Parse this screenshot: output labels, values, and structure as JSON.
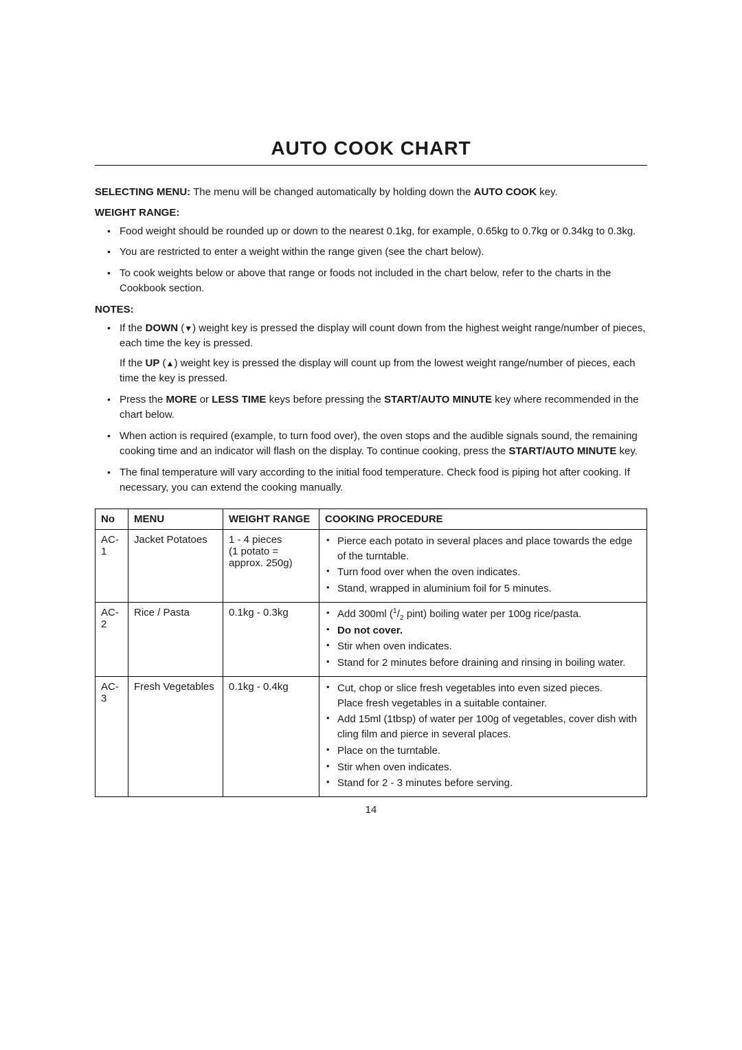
{
  "title": "AUTO COOK CHART",
  "intro": {
    "selecting_label": "SELECTING MENU:",
    "selecting_text": " The menu will be changed automatically by holding down the ",
    "selecting_key": "AUTO COOK",
    "selecting_tail": " key."
  },
  "weight": {
    "heading": "WEIGHT RANGE:",
    "items": [
      "Food weight should be rounded up or down to the nearest 0.1kg, for example, 0.65kg to 0.7kg or 0.34kg to 0.3kg.",
      "You are restricted to enter a weight within the range given (see the chart below).",
      "To cook weights below or above that range or foods not included in the chart below, refer to the charts in the Cookbook section."
    ]
  },
  "notes": {
    "heading": "NOTES:",
    "n1_a": "If the ",
    "n1_down": "DOWN",
    "n1_b": " (",
    "n1_tri_down": "▼",
    "n1_c": ") weight key is pressed the display will count down from the highest weight range/number of pieces, each time the key is pressed.",
    "n1_sub_a": "If the ",
    "n1_up": "UP",
    "n1_sub_b": " (",
    "n1_tri_up": "▲",
    "n1_sub_c": ") weight key is pressed the display will count up from the lowest weight range/number of pieces, each time the key is pressed.",
    "n2_a": "Press the ",
    "n2_more": "MORE",
    "n2_b": " or ",
    "n2_less": "LESS TIME",
    "n2_c": " keys before pressing the ",
    "n2_start": "START/AUTO MINUTE",
    "n2_d": " key where recommended in the chart below.",
    "n3_a": "When action is required (example, to turn food over), the oven stops and the audible signals sound, the remaining cooking time and an indicator will flash on the display. To continue cooking, press the ",
    "n3_start": "START/AUTO MINUTE",
    "n3_b": " key.",
    "n4": "The final temperature will vary according to the initial food temperature. Check food is piping hot after cooking. If necessary, you can extend the cooking manually."
  },
  "table": {
    "headers": {
      "no": "No",
      "menu": "MENU",
      "weight": "WEIGHT RANGE",
      "proc": "COOKING PROCEDURE"
    },
    "rows": [
      {
        "no": "AC-1",
        "menu": "Jacket Potatoes",
        "weight_l1": "1 - 4 pieces",
        "weight_l2": "(1 potato =",
        "weight_l3": "approx. 250g)",
        "proc": [
          "Pierce each potato in several places and place towards the edge of the turntable.",
          "Turn food over when the oven indicates.",
          "Stand, wrapped in aluminium foil for 5 minutes."
        ]
      },
      {
        "no": "AC-2",
        "menu": "Rice / Pasta",
        "weight": "0.1kg - 0.3kg",
        "proc_html": [
          {
            "text_a": "Add 300ml (",
            "sup": "1",
            "text_b": "/",
            "sub": "2",
            "text_c": " pint) boiling water per 100g rice/pasta."
          },
          {
            "bold": "Do not cover."
          },
          {
            "plain": "Stir when oven indicates."
          },
          {
            "plain": "Stand for 2 minutes before draining and rinsing in boiling water."
          }
        ]
      },
      {
        "no": "AC-3",
        "menu": "Fresh Vegetables",
        "weight": "0.1kg - 0.4kg",
        "proc": [
          "Cut, chop or slice fresh vegetables into even sized pieces.\nPlace fresh vegetables in a suitable container.",
          "Add 15ml (1tbsp) of water per 100g of vegetables, cover dish with cling film and pierce in several places.",
          "Place on the turntable.",
          "Stir when oven indicates.",
          "Stand for 2 - 3 minutes before serving."
        ]
      }
    ]
  },
  "page_num": "14"
}
